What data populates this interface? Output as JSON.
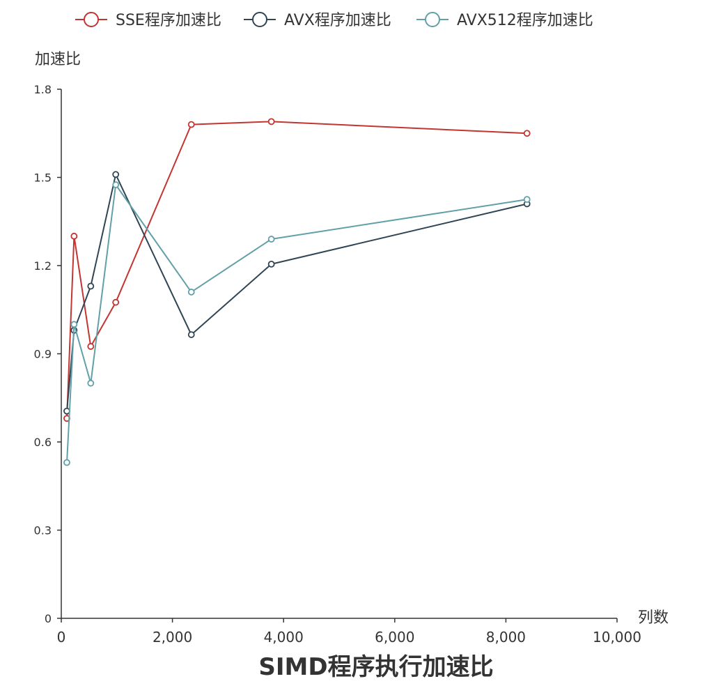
{
  "chart_data": {
    "type": "line",
    "title": "SIMD程序执行加速比",
    "xlabel": "列数",
    "ylabel": "加速比",
    "xlim": [
      0,
      10000
    ],
    "ylim": [
      0,
      1.8
    ],
    "x_ticks": [
      "0",
      "2,000",
      "4,000",
      "6,000",
      "8,000",
      "10,000"
    ],
    "y_ticks": [
      "0",
      "0.3",
      "0.6",
      "0.9",
      "1.2",
      "1.5",
      "1.8"
    ],
    "grid": false,
    "legend_position": "top",
    "series": [
      {
        "name": "SSE程序加速比",
        "color": "#c23531",
        "x": [
          100,
          230,
          530,
          980,
          2340,
          3780,
          8380
        ],
        "y": [
          0.68,
          1.3,
          0.925,
          1.075,
          1.68,
          1.69,
          1.65
        ]
      },
      {
        "name": "AVX程序加速比",
        "color": "#2f4554",
        "x": [
          100,
          230,
          530,
          980,
          2340,
          3780,
          8380
        ],
        "y": [
          0.705,
          0.98,
          1.13,
          1.51,
          0.965,
          1.205,
          1.41
        ]
      },
      {
        "name": "AVX512程序加速比",
        "color": "#61a0a8",
        "x": [
          100,
          230,
          530,
          980,
          2340,
          3780,
          8380
        ],
        "y": [
          0.53,
          1.0,
          0.8,
          1.475,
          1.11,
          1.29,
          1.425
        ]
      }
    ]
  }
}
